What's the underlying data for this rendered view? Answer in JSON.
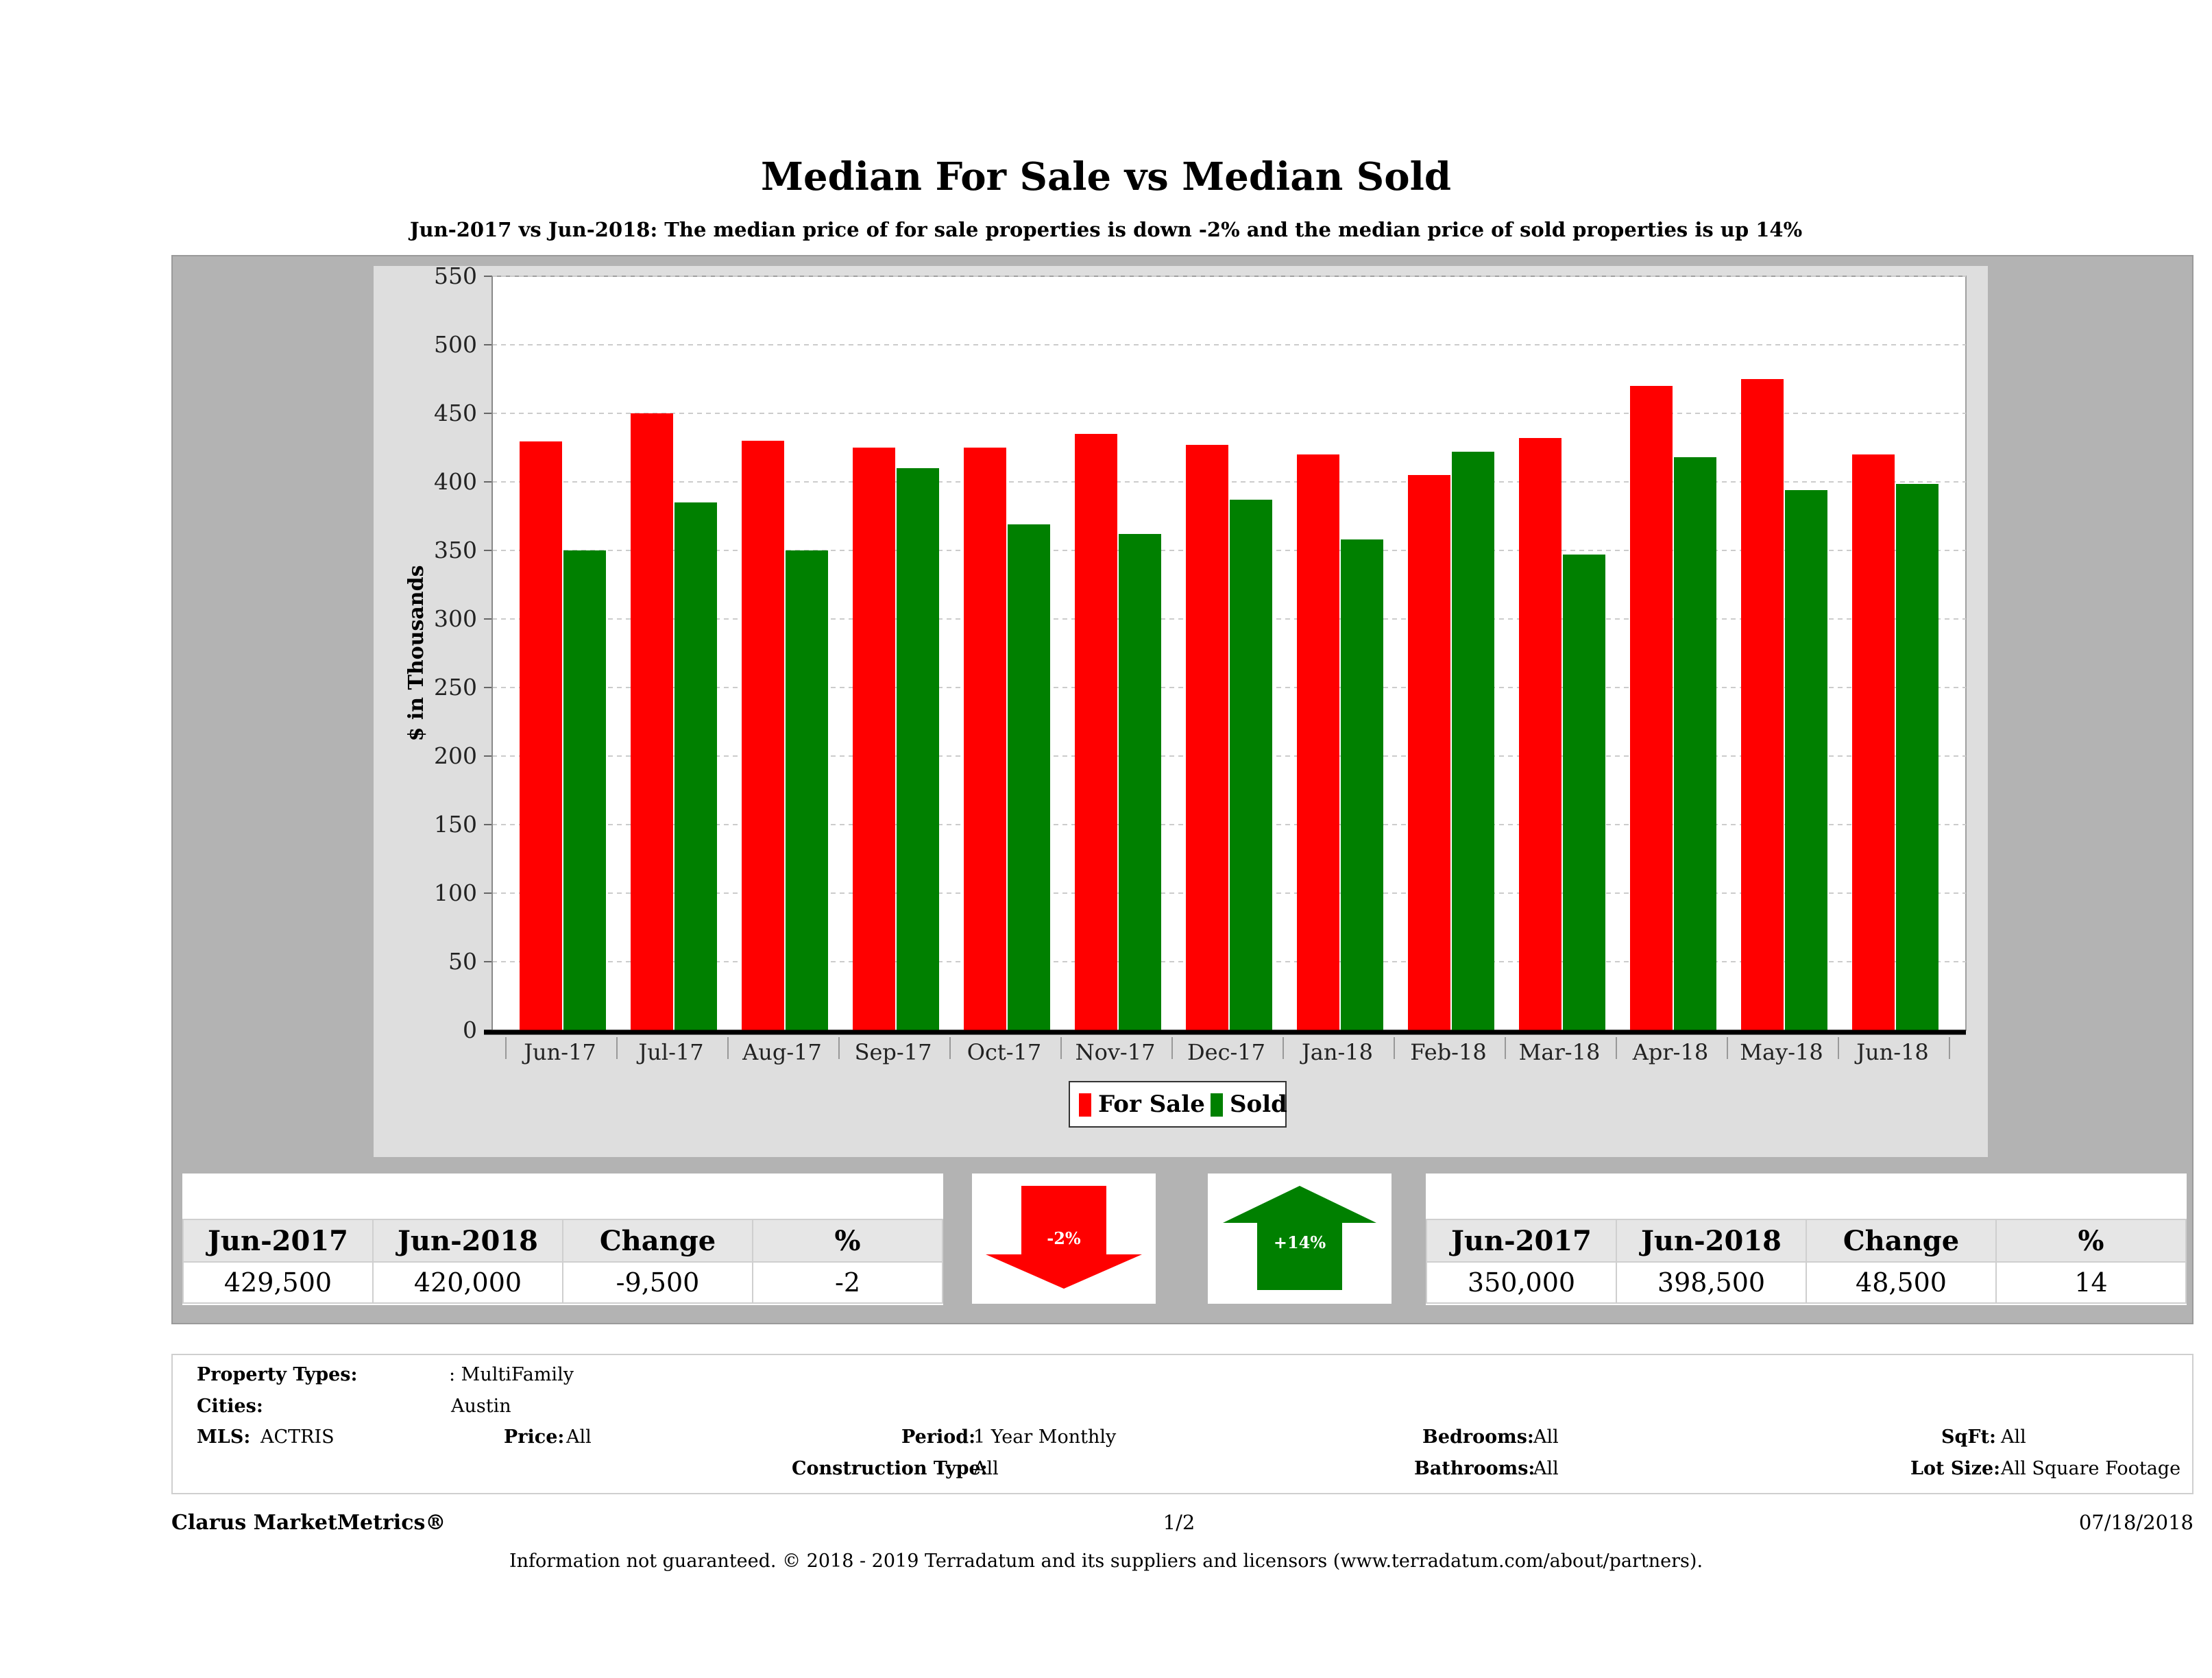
{
  "header": {
    "title": "Median For Sale vs Median Sold",
    "subtitle": "Jun-2017 vs Jun-2018: The median price of for sale properties is down -2% and the median price of sold properties is up 14%"
  },
  "chart_data": {
    "type": "bar",
    "ylabel": "$ in Thousands",
    "ylim": [
      0,
      550
    ],
    "yticks": [
      0,
      50,
      100,
      150,
      200,
      250,
      300,
      350,
      400,
      450,
      500,
      550
    ],
    "grid": true,
    "legend_position": "bottom",
    "categories": [
      "Jun-17",
      "Jul-17",
      "Aug-17",
      "Sep-17",
      "Oct-17",
      "Nov-17",
      "Dec-17",
      "Jan-18",
      "Feb-18",
      "Mar-18",
      "Apr-18",
      "May-18",
      "Jun-18"
    ],
    "series": [
      {
        "name": "For Sale",
        "color": "#ff0000",
        "values": [
          429.5,
          450,
          430,
          425,
          425,
          435,
          427,
          420,
          405,
          432,
          470,
          475,
          420
        ]
      },
      {
        "name": "Sold",
        "color": "#008000",
        "values": [
          350,
          385,
          350,
          410,
          369,
          362,
          387,
          358,
          422,
          347,
          418,
          394,
          398.5
        ]
      }
    ]
  },
  "for_sale_summary": {
    "headers": [
      "Jun-2017",
      "Jun-2018",
      "Change",
      "%"
    ],
    "values": [
      "429,500",
      "420,000",
      "-9,500",
      "-2"
    ],
    "arrow_label": "-2%",
    "arrow_color": "#ff0000"
  },
  "sold_summary": {
    "headers": [
      "Jun-2017",
      "Jun-2018",
      "Change",
      "%"
    ],
    "values": [
      "350,000",
      "398,500",
      "48,500",
      "14"
    ],
    "arrow_label": "+14%",
    "arrow_color": "#008000"
  },
  "criteria": {
    "property_types_label": "Property Types:",
    "property_types_value": ": MultiFamily",
    "cities_label": "Cities:",
    "cities_value": "Austin",
    "mls_label": "MLS:",
    "mls_value": "ACTRIS",
    "price_label": "Price:",
    "price_value": "All",
    "period_label": "Period:",
    "period_value": "1 Year Monthly",
    "construction_label": "Construction Type:",
    "construction_value": "All",
    "bedrooms_label": "Bedrooms:",
    "bedrooms_value": "All",
    "bathrooms_label": "Bathrooms:",
    "bathrooms_value": "All",
    "sqft_label": "SqFt:",
    "sqft_value": "All",
    "lotsize_label": "Lot Size:",
    "lotsize_value": "All Square Footage"
  },
  "footer": {
    "brand": "Clarus MarketMetrics®",
    "page": "1/2",
    "date": "07/18/2018",
    "disclaimer": "Information not guaranteed. © 2018 - 2019 Terradatum and its suppliers and licensors (www.terradatum.com/about/partners)."
  }
}
